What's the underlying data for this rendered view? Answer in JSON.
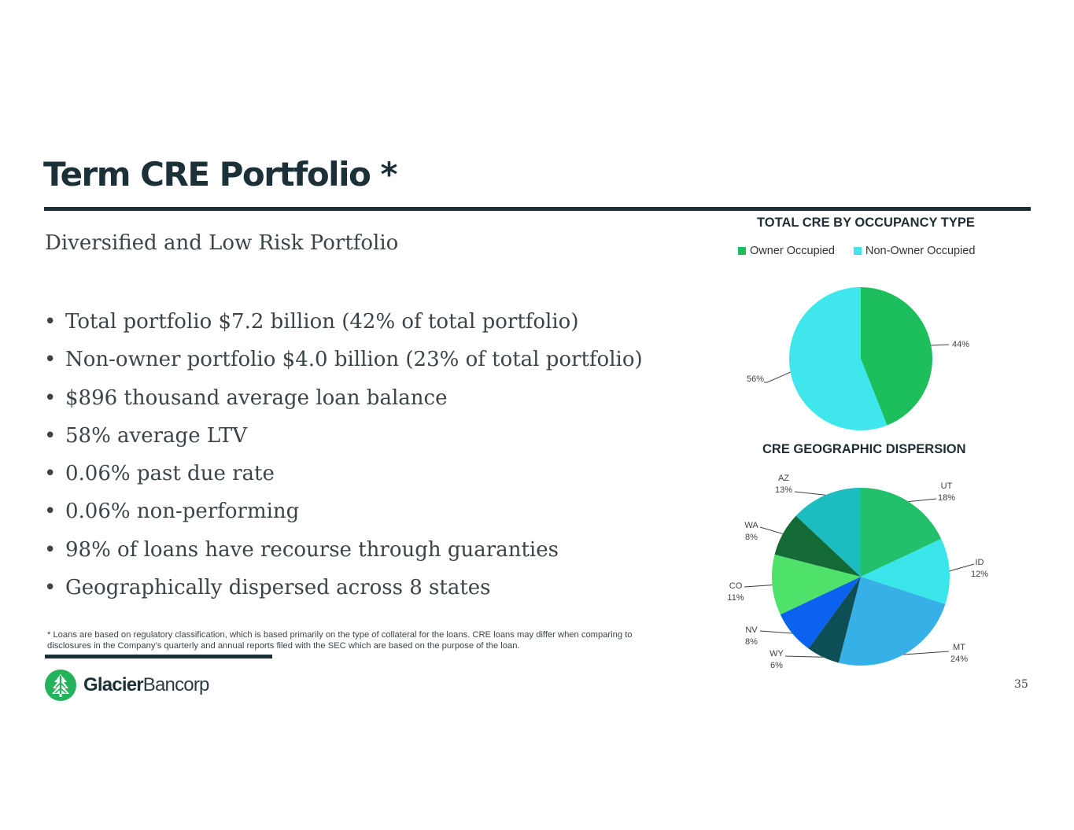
{
  "title": "Term CRE Portfolio *",
  "subtitle": "Diversified and Low Risk Portfolio",
  "bullets": [
    "Total portfolio $7.2 billion (42% of total portfolio)",
    "Non-owner portfolio $4.0 billion (23% of total portfolio)",
    "$896 thousand average loan balance",
    "58% average LTV",
    "0.06% past due rate",
    "0.06% non-performing",
    "98% of loans have recourse through guaranties",
    "Geographically dispersed across 8 states"
  ],
  "bullet_symbol": "•",
  "footnote": "* Loans are based on regulatory classification, which is based primarily on the type of collateral for the loans. CRE loans may differ when comparing to disclosures in the Company’s quarterly and annual reports filed with the SEC which are based on the purpose of the loan.",
  "logo": {
    "word1": "Glacier",
    "word2": "Bancorp"
  },
  "page_number": "35",
  "chart_data": [
    {
      "type": "pie",
      "title": "TOTAL CRE BY OCCUPANCY TYPE",
      "legend_position": "top",
      "slices": [
        {
          "label": "Owner Occupied",
          "value": 44,
          "data_label": "44%",
          "color": "#1dbe5c"
        },
        {
          "label": "Non-Owner Occupied",
          "value": 56,
          "data_label": "56%",
          "color": "#3fe6ec"
        }
      ]
    },
    {
      "type": "pie",
      "title": "CRE GEOGRAPHIC DISPERSION",
      "slices": [
        {
          "label": "UT",
          "value": 18,
          "data_label": "18%",
          "color": "#22c06a"
        },
        {
          "label": "ID",
          "value": 12,
          "data_label": "12%",
          "color": "#3ae6ea"
        },
        {
          "label": "MT",
          "value": 24,
          "data_label": "24%",
          "color": "#36b0e6"
        },
        {
          "label": "WY",
          "value": 6,
          "data_label": "6%",
          "color": "#0d4f54"
        },
        {
          "label": "NV",
          "value": 8,
          "data_label": "8%",
          "color": "#0b62ee"
        },
        {
          "label": "CO",
          "value": 11,
          "data_label": "11%",
          "color": "#4ee26a"
        },
        {
          "label": "WA",
          "value": 8,
          "data_label": "8%",
          "color": "#146a35"
        },
        {
          "label": "AZ",
          "value": 13,
          "data_label": "13%",
          "color": "#1bbdc1"
        }
      ]
    }
  ]
}
